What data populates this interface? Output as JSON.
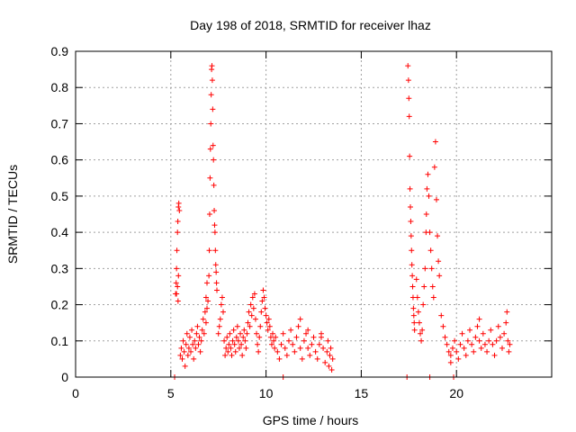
{
  "chart_data": {
    "type": "scatter",
    "title": "Day 198 of 2018, SRMTID for receiver lhaz",
    "xlabel": "GPS time / hours",
    "ylabel": "SRMTID / TECUs",
    "xlim": [
      0,
      25
    ],
    "ylim": [
      0,
      0.9
    ],
    "x_ticks": [
      0,
      5,
      10,
      15,
      20
    ],
    "x_tick_labels": [
      "0",
      "5",
      "10",
      "15",
      "20"
    ],
    "y_ticks": [
      0,
      0.1,
      0.2,
      0.3,
      0.4,
      0.5,
      0.6,
      0.7,
      0.8,
      0.9
    ],
    "y_tick_labels": [
      "0",
      "0.1",
      "0.2",
      "0.3",
      "0.4",
      "0.5",
      "0.6",
      "0.7",
      "0.8",
      "0.9"
    ],
    "grid": true,
    "marker": "+",
    "series_color": "#ff0000",
    "series": [
      {
        "name": "SRMTID",
        "points": [
          [
            5.2,
            0.0
          ],
          [
            5.25,
            0.23
          ],
          [
            5.28,
            0.26
          ],
          [
            5.3,
            0.3
          ],
          [
            5.32,
            0.35
          ],
          [
            5.35,
            0.4
          ],
          [
            5.37,
            0.43
          ],
          [
            5.4,
            0.47
          ],
          [
            5.42,
            0.48
          ],
          [
            5.45,
            0.46
          ],
          [
            5.3,
            0.23
          ],
          [
            5.35,
            0.25
          ],
          [
            5.38,
            0.21
          ],
          [
            5.4,
            0.28
          ],
          [
            5.5,
            0.06
          ],
          [
            5.55,
            0.08
          ],
          [
            5.6,
            0.05
          ],
          [
            5.65,
            0.1
          ],
          [
            5.7,
            0.07
          ],
          [
            5.75,
            0.03
          ],
          [
            5.8,
            0.09
          ],
          [
            5.85,
            0.12
          ],
          [
            5.9,
            0.06
          ],
          [
            5.95,
            0.08
          ],
          [
            6.0,
            0.11
          ],
          [
            6.05,
            0.07
          ],
          [
            6.1,
            0.13
          ],
          [
            6.15,
            0.09
          ],
          [
            6.2,
            0.05
          ],
          [
            6.25,
            0.1
          ],
          [
            6.3,
            0.08
          ],
          [
            6.35,
            0.12
          ],
          [
            6.4,
            0.14
          ],
          [
            6.45,
            0.09
          ],
          [
            6.5,
            0.11
          ],
          [
            6.55,
            0.07
          ],
          [
            6.6,
            0.1
          ],
          [
            6.65,
            0.13
          ],
          [
            6.7,
            0.16
          ],
          [
            6.75,
            0.12
          ],
          [
            6.8,
            0.18
          ],
          [
            6.85,
            0.22
          ],
          [
            6.9,
            0.26
          ],
          [
            6.95,
            0.21
          ],
          [
            6.85,
            0.15
          ],
          [
            6.9,
            0.19
          ],
          [
            7.0,
            0.28
          ],
          [
            7.02,
            0.35
          ],
          [
            7.04,
            0.45
          ],
          [
            7.06,
            0.55
          ],
          [
            7.08,
            0.63
          ],
          [
            7.1,
            0.7
          ],
          [
            7.12,
            0.78
          ],
          [
            7.14,
            0.85
          ],
          [
            7.16,
            0.86
          ],
          [
            7.18,
            0.82
          ],
          [
            7.2,
            0.74
          ],
          [
            7.22,
            0.64
          ],
          [
            7.24,
            0.6
          ],
          [
            7.26,
            0.53
          ],
          [
            7.28,
            0.46
          ],
          [
            7.3,
            0.42
          ],
          [
            7.32,
            0.4
          ],
          [
            7.34,
            0.35
          ],
          [
            7.36,
            0.31
          ],
          [
            7.38,
            0.29
          ],
          [
            7.4,
            0.26
          ],
          [
            7.42,
            0.24
          ],
          [
            7.5,
            0.12
          ],
          [
            7.55,
            0.14
          ],
          [
            7.6,
            0.16
          ],
          [
            7.65,
            0.2
          ],
          [
            7.7,
            0.22
          ],
          [
            7.75,
            0.18
          ],
          [
            7.8,
            0.1
          ],
          [
            7.85,
            0.06
          ],
          [
            7.9,
            0.08
          ],
          [
            7.95,
            0.11
          ],
          [
            8.0,
            0.07
          ],
          [
            8.05,
            0.09
          ],
          [
            8.1,
            0.12
          ],
          [
            8.15,
            0.08
          ],
          [
            8.2,
            0.06
          ],
          [
            8.25,
            0.1
          ],
          [
            8.3,
            0.13
          ],
          [
            8.35,
            0.09
          ],
          [
            8.4,
            0.07
          ],
          [
            8.45,
            0.11
          ],
          [
            8.5,
            0.14
          ],
          [
            8.55,
            0.1
          ],
          [
            8.6,
            0.08
          ],
          [
            8.65,
            0.12
          ],
          [
            8.7,
            0.09
          ],
          [
            8.75,
            0.06
          ],
          [
            8.8,
            0.11
          ],
          [
            8.85,
            0.13
          ],
          [
            8.9,
            0.1
          ],
          [
            8.95,
            0.08
          ],
          [
            9.0,
            0.12
          ],
          [
            9.05,
            0.15
          ],
          [
            9.1,
            0.18
          ],
          [
            9.15,
            0.14
          ],
          [
            9.2,
            0.2
          ],
          [
            9.25,
            0.17
          ],
          [
            9.3,
            0.22
          ],
          [
            9.35,
            0.19
          ],
          [
            9.4,
            0.23
          ],
          [
            9.45,
            0.16
          ],
          [
            9.5,
            0.12
          ],
          [
            9.55,
            0.09
          ],
          [
            9.6,
            0.07
          ],
          [
            9.65,
            0.11
          ],
          [
            9.7,
            0.14
          ],
          [
            9.75,
            0.18
          ],
          [
            9.8,
            0.21
          ],
          [
            9.85,
            0.24
          ],
          [
            9.9,
            0.22
          ],
          [
            9.95,
            0.19
          ],
          [
            10.0,
            0.17
          ],
          [
            10.05,
            0.15
          ],
          [
            10.1,
            0.13
          ],
          [
            10.15,
            0.16
          ],
          [
            10.2,
            0.14
          ],
          [
            10.25,
            0.11
          ],
          [
            10.3,
            0.09
          ],
          [
            10.35,
            0.12
          ],
          [
            10.4,
            0.1
          ],
          [
            10.45,
            0.08
          ],
          [
            10.5,
            0.11
          ],
          [
            10.9,
            0.0
          ],
          [
            10.6,
            0.07
          ],
          [
            10.7,
            0.05
          ],
          [
            10.8,
            0.09
          ],
          [
            10.9,
            0.12
          ],
          [
            11.0,
            0.08
          ],
          [
            11.1,
            0.06
          ],
          [
            11.2,
            0.1
          ],
          [
            11.3,
            0.13
          ],
          [
            11.4,
            0.09
          ],
          [
            11.5,
            0.07
          ],
          [
            11.6,
            0.11
          ],
          [
            11.7,
            0.14
          ],
          [
            11.8,
            0.08
          ],
          [
            11.9,
            0.05
          ],
          [
            12.0,
            0.1
          ],
          [
            12.1,
            0.12
          ],
          [
            12.2,
            0.08
          ],
          [
            12.3,
            0.06
          ],
          [
            12.4,
            0.09
          ],
          [
            12.5,
            0.11
          ],
          [
            12.6,
            0.07
          ],
          [
            12.7,
            0.05
          ],
          [
            12.8,
            0.09
          ],
          [
            12.9,
            0.12
          ],
          [
            13.0,
            0.08
          ],
          [
            13.1,
            0.04
          ],
          [
            13.2,
            0.07
          ],
          [
            13.25,
            0.1
          ],
          [
            13.3,
            0.03
          ],
          [
            13.35,
            0.06
          ],
          [
            13.4,
            0.08
          ],
          [
            13.45,
            0.02
          ],
          [
            13.5,
            0.05
          ],
          [
            11.8,
            0.16
          ],
          [
            12.2,
            0.13
          ],
          [
            12.9,
            0.11
          ],
          [
            17.4,
            0.0
          ],
          [
            17.45,
            0.86
          ],
          [
            17.48,
            0.82
          ],
          [
            17.5,
            0.77
          ],
          [
            17.52,
            0.72
          ],
          [
            17.54,
            0.61
          ],
          [
            17.56,
            0.52
          ],
          [
            17.58,
            0.47
          ],
          [
            17.6,
            0.43
          ],
          [
            17.62,
            0.39
          ],
          [
            17.64,
            0.35
          ],
          [
            17.66,
            0.31
          ],
          [
            17.68,
            0.28
          ],
          [
            17.7,
            0.25
          ],
          [
            17.72,
            0.22
          ],
          [
            17.74,
            0.19
          ],
          [
            17.76,
            0.17
          ],
          [
            17.78,
            0.15
          ],
          [
            17.8,
            0.13
          ],
          [
            17.9,
            0.27
          ],
          [
            17.95,
            0.22
          ],
          [
            18.0,
            0.18
          ],
          [
            18.05,
            0.15
          ],
          [
            18.1,
            0.12
          ],
          [
            18.15,
            0.1
          ],
          [
            18.2,
            0.13
          ],
          [
            18.25,
            0.2
          ],
          [
            18.3,
            0.25
          ],
          [
            18.35,
            0.3
          ],
          [
            18.4,
            0.4
          ],
          [
            18.42,
            0.45
          ],
          [
            18.45,
            0.52
          ],
          [
            18.5,
            0.56
          ],
          [
            18.55,
            0.5
          ],
          [
            18.6,
            0.4
          ],
          [
            18.65,
            0.35
          ],
          [
            18.7,
            0.3
          ],
          [
            18.75,
            0.25
          ],
          [
            18.8,
            0.22
          ],
          [
            18.85,
            0.58
          ],
          [
            18.9,
            0.65
          ],
          [
            18.95,
            0.49
          ],
          [
            19.0,
            0.39
          ],
          [
            19.05,
            0.32
          ],
          [
            19.1,
            0.28
          ],
          [
            18.6,
            0.0
          ],
          [
            19.2,
            0.17
          ],
          [
            19.3,
            0.14
          ],
          [
            19.4,
            0.11
          ],
          [
            19.5,
            0.09
          ],
          [
            19.6,
            0.07
          ],
          [
            19.7,
            0.06
          ],
          [
            19.8,
            0.08
          ],
          [
            19.9,
            0.1
          ],
          [
            20.0,
            0.07
          ],
          [
            20.1,
            0.05
          ],
          [
            20.2,
            0.09
          ],
          [
            20.3,
            0.12
          ],
          [
            20.4,
            0.08
          ],
          [
            20.5,
            0.06
          ],
          [
            20.6,
            0.1
          ],
          [
            20.7,
            0.13
          ],
          [
            20.8,
            0.09
          ],
          [
            20.9,
            0.07
          ],
          [
            21.0,
            0.11
          ],
          [
            21.1,
            0.14
          ],
          [
            21.2,
            0.1
          ],
          [
            21.3,
            0.08
          ],
          [
            21.4,
            0.12
          ],
          [
            21.5,
            0.09
          ],
          [
            21.6,
            0.07
          ],
          [
            21.7,
            0.1
          ],
          [
            21.8,
            0.13
          ],
          [
            21.9,
            0.09
          ],
          [
            22.0,
            0.06
          ],
          [
            22.1,
            0.1
          ],
          [
            22.2,
            0.14
          ],
          [
            22.3,
            0.11
          ],
          [
            22.4,
            0.08
          ],
          [
            22.5,
            0.12
          ],
          [
            22.6,
            0.15
          ],
          [
            22.65,
            0.18
          ],
          [
            22.7,
            0.1
          ],
          [
            22.75,
            0.07
          ],
          [
            22.8,
            0.09
          ],
          [
            19.85,
            0.0
          ],
          [
            21.2,
            0.16
          ],
          [
            19.7,
            0.04
          ]
        ]
      }
    ]
  }
}
